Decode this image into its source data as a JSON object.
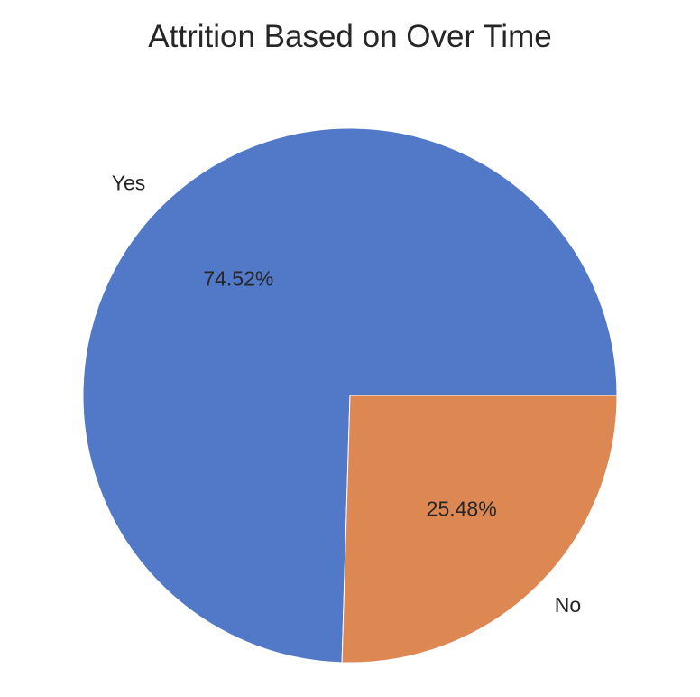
{
  "chart_data": {
    "type": "pie",
    "title": "Attrition Based on Over Time",
    "labels": [
      "Yes",
      "No"
    ],
    "values": [
      74.52,
      25.48
    ],
    "value_labels": [
      "74.52%",
      "25.48%"
    ],
    "colors": [
      "#5278c8",
      "#dd8853"
    ],
    "start_angle_deg": 0,
    "direction": "counterclockwise",
    "legend": "none"
  }
}
